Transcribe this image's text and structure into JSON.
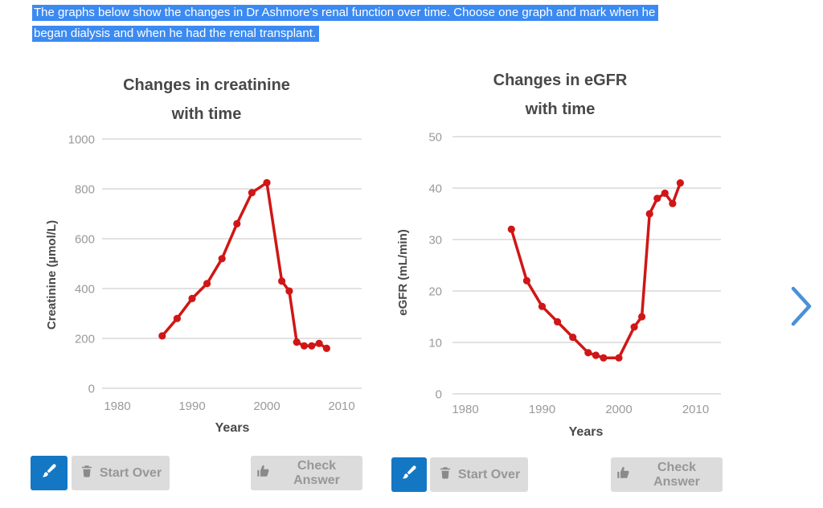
{
  "instruction": {
    "line1": "The graphs below show the changes in Dr Ashmore's renal function over time. Choose one graph and mark when he",
    "line2": "began dialysis and when he had the renal transplant.",
    "highlight_color": "#3b8af2",
    "text_color": "#ffffff"
  },
  "colors": {
    "series_red": "#d01616",
    "grid": "#d9d9d9",
    "tick_label": "#9a9a9a",
    "title_text": "#484848",
    "axis_label_text": "#484848",
    "edit_button_blue": "#1377c4",
    "button_bg": "#dcdcdc",
    "button_text": "#979797",
    "button_icon": "#8a8a8a",
    "chevron_blue": "#4a90d9"
  },
  "chart_data": [
    {
      "type": "line",
      "title": "Changes in creatinine",
      "title_line2": "with time",
      "xlabel": "Years",
      "ylabel": "Creatinine (µmol/L)",
      "xticks": [
        1980,
        1990,
        2000,
        2010
      ],
      "yticks": [
        0,
        200,
        400,
        600,
        800,
        1000
      ],
      "xlim": [
        1978,
        2013
      ],
      "ylim": [
        0,
        1000
      ],
      "grid": true,
      "legend": "none",
      "series": [
        {
          "name": "Creatinine",
          "color": "#d01616",
          "x": [
            1986,
            1988,
            1990,
            1992,
            1994,
            1996,
            1998,
            2000,
            2002,
            2003,
            2004,
            2005,
            2006,
            2007,
            2008
          ],
          "y": [
            210,
            280,
            360,
            420,
            520,
            660,
            785,
            825,
            430,
            390,
            185,
            170,
            170,
            180,
            160
          ]
        }
      ]
    },
    {
      "type": "line",
      "title": "Changes in eGFR",
      "title_line2": "with time",
      "xlabel": "Years",
      "ylabel": "eGFR (mL/min)",
      "xticks": [
        1980,
        1990,
        2000,
        2010
      ],
      "yticks": [
        0,
        10,
        20,
        30,
        40,
        50
      ],
      "xlim": [
        1978,
        2013
      ],
      "ylim": [
        0,
        50
      ],
      "grid": true,
      "legend": "none",
      "series": [
        {
          "name": "eGFR",
          "color": "#d01616",
          "x": [
            1986,
            1988,
            1990,
            1992,
            1994,
            1996,
            1997,
            1998,
            2000,
            2002,
            2003,
            2004,
            2005,
            2006,
            2007,
            2008
          ],
          "y": [
            32,
            22,
            17,
            14,
            11,
            8,
            7.5,
            7,
            7,
            13,
            15,
            35,
            38,
            39,
            37,
            41
          ]
        }
      ]
    }
  ],
  "controls": {
    "start_over_label": "Start Over",
    "check_answer_label": "Check Answer",
    "edit_tool_icon": "paintbrush-icon",
    "next_icon": "chevron-right-icon"
  }
}
